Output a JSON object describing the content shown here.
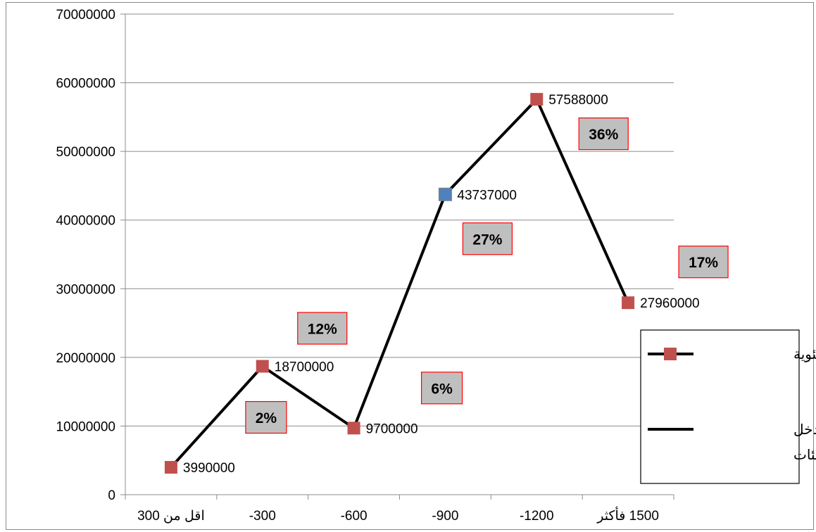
{
  "chart_data": {
    "type": "line",
    "categories": [
      "اقل من 300",
      "-300",
      "-600",
      "-900",
      "-1200",
      "1500 فأكثر"
    ],
    "series": [
      {
        "name": "مجموع الدخل حسب الفئات",
        "values": [
          3990000,
          18700000,
          9700000,
          43737000,
          57588000,
          27960000
        ],
        "color": "#000000"
      }
    ],
    "data_labels": [
      "3990000",
      "18700000",
      "9700000",
      "43737000",
      "57588000",
      "27960000"
    ],
    "percent_labels": [
      "2%",
      "12%",
      "6%",
      "27%",
      "36%",
      "17%"
    ],
    "marker_colors": [
      "#c0504d",
      "#c0504d",
      "#c0504d",
      "#4f81bd",
      "#c0504d",
      "#c0504d"
    ],
    "y_ticks": [
      "0",
      "10000000",
      "20000000",
      "30000000",
      "40000000",
      "50000000",
      "60000000",
      "70000000"
    ],
    "ylim": [
      0,
      70000000
    ],
    "grid": true,
    "legend": {
      "position": "right",
      "entries": [
        {
          "label": "النسبة المئوية",
          "marker_color": "#c0504d"
        },
        {
          "label_line1": "مجموع الدخل",
          "label_line2": "حسب الفئات",
          "line_color": "#000000"
        }
      ]
    },
    "colors": {
      "marker_red": "#c0504d",
      "marker_blue": "#4f81bd",
      "pct_box_fill": "#bfbfbf",
      "pct_box_border": "#ff0000",
      "grid": "#8c8c8c"
    }
  }
}
